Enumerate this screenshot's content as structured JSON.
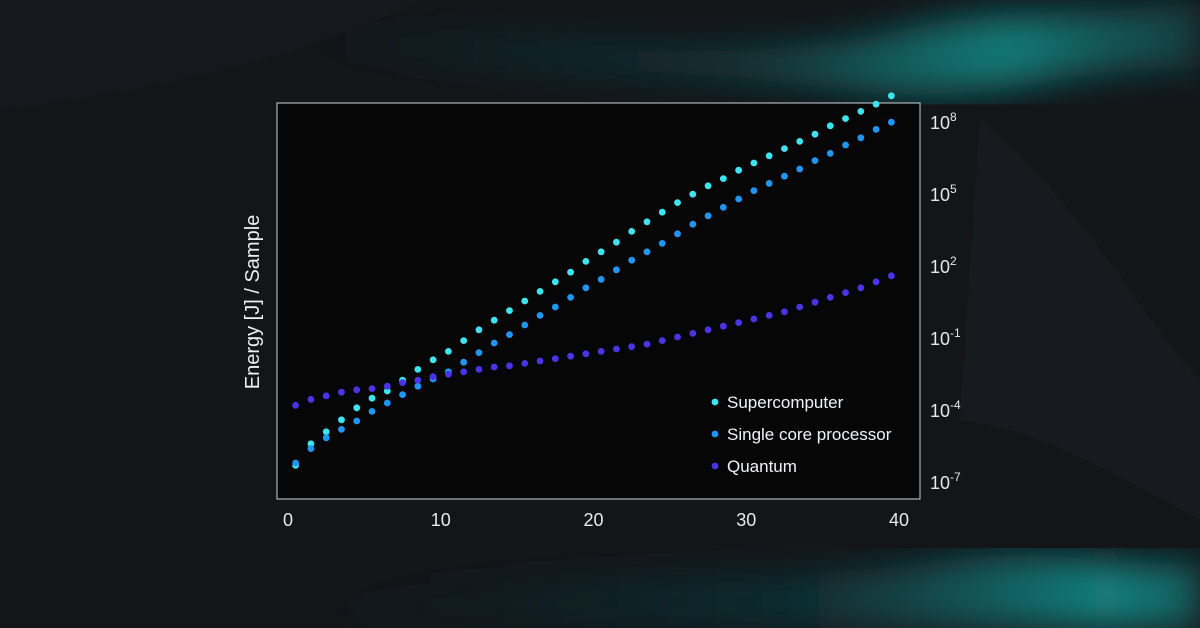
{
  "chart_data": {
    "type": "scatter",
    "xlabel": "",
    "ylabel": "Energy  [J]  / Sample",
    "xlim": [
      -1,
      41
    ],
    "ylim_log10": [
      -7.7,
      8.8
    ],
    "y_scale": "log",
    "y_axis_side": "right",
    "x_ticks": [
      "0",
      "10",
      "20",
      "30",
      "40"
    ],
    "x_tick_values": [
      0,
      10,
      20,
      30,
      40
    ],
    "y_ticks": [
      {
        "base": "10",
        "exp": "8",
        "value": 8
      },
      {
        "base": "10",
        "exp": "5",
        "value": 5
      },
      {
        "base": "10",
        "exp": "2",
        "value": 2
      },
      {
        "base": "10",
        "exp": "-1",
        "value": -1
      },
      {
        "base": "10",
        "exp": "-4",
        "value": -4
      },
      {
        "base": "10",
        "exp": "-7",
        "value": -7
      }
    ],
    "grid": false,
    "legend_position": "bottom-right",
    "series": [
      {
        "name": "Supercomputer",
        "color": "#3ee3f0",
        "x": [
          0.5,
          1.5,
          2.5,
          3.5,
          4.5,
          5.5,
          6.5,
          7.5,
          8.5,
          9.5,
          10.5,
          11.5,
          12.5,
          13.5,
          14.5,
          15.5,
          16.5,
          17.5,
          18.5,
          19.5,
          20.5,
          21.5,
          22.5,
          23.5,
          24.5,
          25.5,
          26.5,
          27.5,
          28.5,
          29.5,
          30.5,
          31.5,
          32.5,
          33.5,
          34.5,
          35.5,
          36.5,
          37.5,
          38.5,
          39.5
        ],
        "log10_y": [
          -6.3,
          -5.4,
          -4.9,
          -4.4,
          -3.9,
          -3.5,
          -3.2,
          -2.75,
          -2.3,
          -1.9,
          -1.55,
          -1.1,
          -0.65,
          -0.25,
          0.15,
          0.55,
          0.95,
          1.35,
          1.75,
          2.2,
          2.6,
          3.0,
          3.45,
          3.85,
          4.25,
          4.65,
          5.0,
          5.35,
          5.65,
          6.0,
          6.3,
          6.6,
          6.9,
          7.2,
          7.5,
          7.85,
          8.15,
          8.45,
          8.75,
          9.1
        ]
      },
      {
        "name": "Single core processor",
        "color": "#1f97f2",
        "x": [
          0.5,
          1.5,
          2.5,
          3.5,
          4.5,
          5.5,
          6.5,
          7.5,
          8.5,
          9.5,
          10.5,
          11.5,
          12.5,
          13.5,
          14.5,
          15.5,
          16.5,
          17.5,
          18.5,
          19.5,
          20.5,
          21.5,
          22.5,
          23.5,
          24.5,
          25.5,
          26.5,
          27.5,
          28.5,
          29.5,
          30.5,
          31.5,
          32.5,
          33.5,
          34.5,
          35.5,
          36.5,
          37.5,
          38.5,
          39.5
        ],
        "log10_y": [
          -6.2,
          -5.6,
          -5.15,
          -4.8,
          -4.45,
          -4.05,
          -3.7,
          -3.35,
          -3.0,
          -2.7,
          -2.4,
          -2.0,
          -1.6,
          -1.2,
          -0.85,
          -0.45,
          -0.05,
          0.3,
          0.7,
          1.1,
          1.45,
          1.85,
          2.25,
          2.6,
          2.95,
          3.35,
          3.75,
          4.1,
          4.45,
          4.8,
          5.15,
          5.45,
          5.75,
          6.05,
          6.4,
          6.7,
          7.05,
          7.35,
          7.7,
          8.0
        ]
      },
      {
        "name": "Quantum",
        "color": "#4a35e6",
        "x": [
          0.5,
          1.5,
          2.5,
          3.5,
          4.5,
          5.5,
          6.5,
          7.5,
          8.5,
          9.5,
          10.5,
          11.5,
          12.5,
          13.5,
          14.5,
          15.5,
          16.5,
          17.5,
          18.5,
          19.5,
          20.5,
          21.5,
          22.5,
          23.5,
          24.5,
          25.5,
          26.5,
          27.5,
          28.5,
          29.5,
          30.5,
          31.5,
          32.5,
          33.5,
          34.5,
          35.5,
          36.5,
          37.5,
          38.5,
          39.5
        ],
        "log10_y": [
          -3.8,
          -3.55,
          -3.4,
          -3.25,
          -3.15,
          -3.1,
          -3.0,
          -2.85,
          -2.75,
          -2.6,
          -2.5,
          -2.4,
          -2.3,
          -2.2,
          -2.15,
          -2.05,
          -1.95,
          -1.85,
          -1.75,
          -1.65,
          -1.55,
          -1.45,
          -1.35,
          -1.25,
          -1.1,
          -0.95,
          -0.8,
          -0.65,
          -0.5,
          -0.35,
          -0.2,
          -0.05,
          0.1,
          0.3,
          0.5,
          0.7,
          0.9,
          1.1,
          1.35,
          1.6
        ]
      }
    ]
  }
}
